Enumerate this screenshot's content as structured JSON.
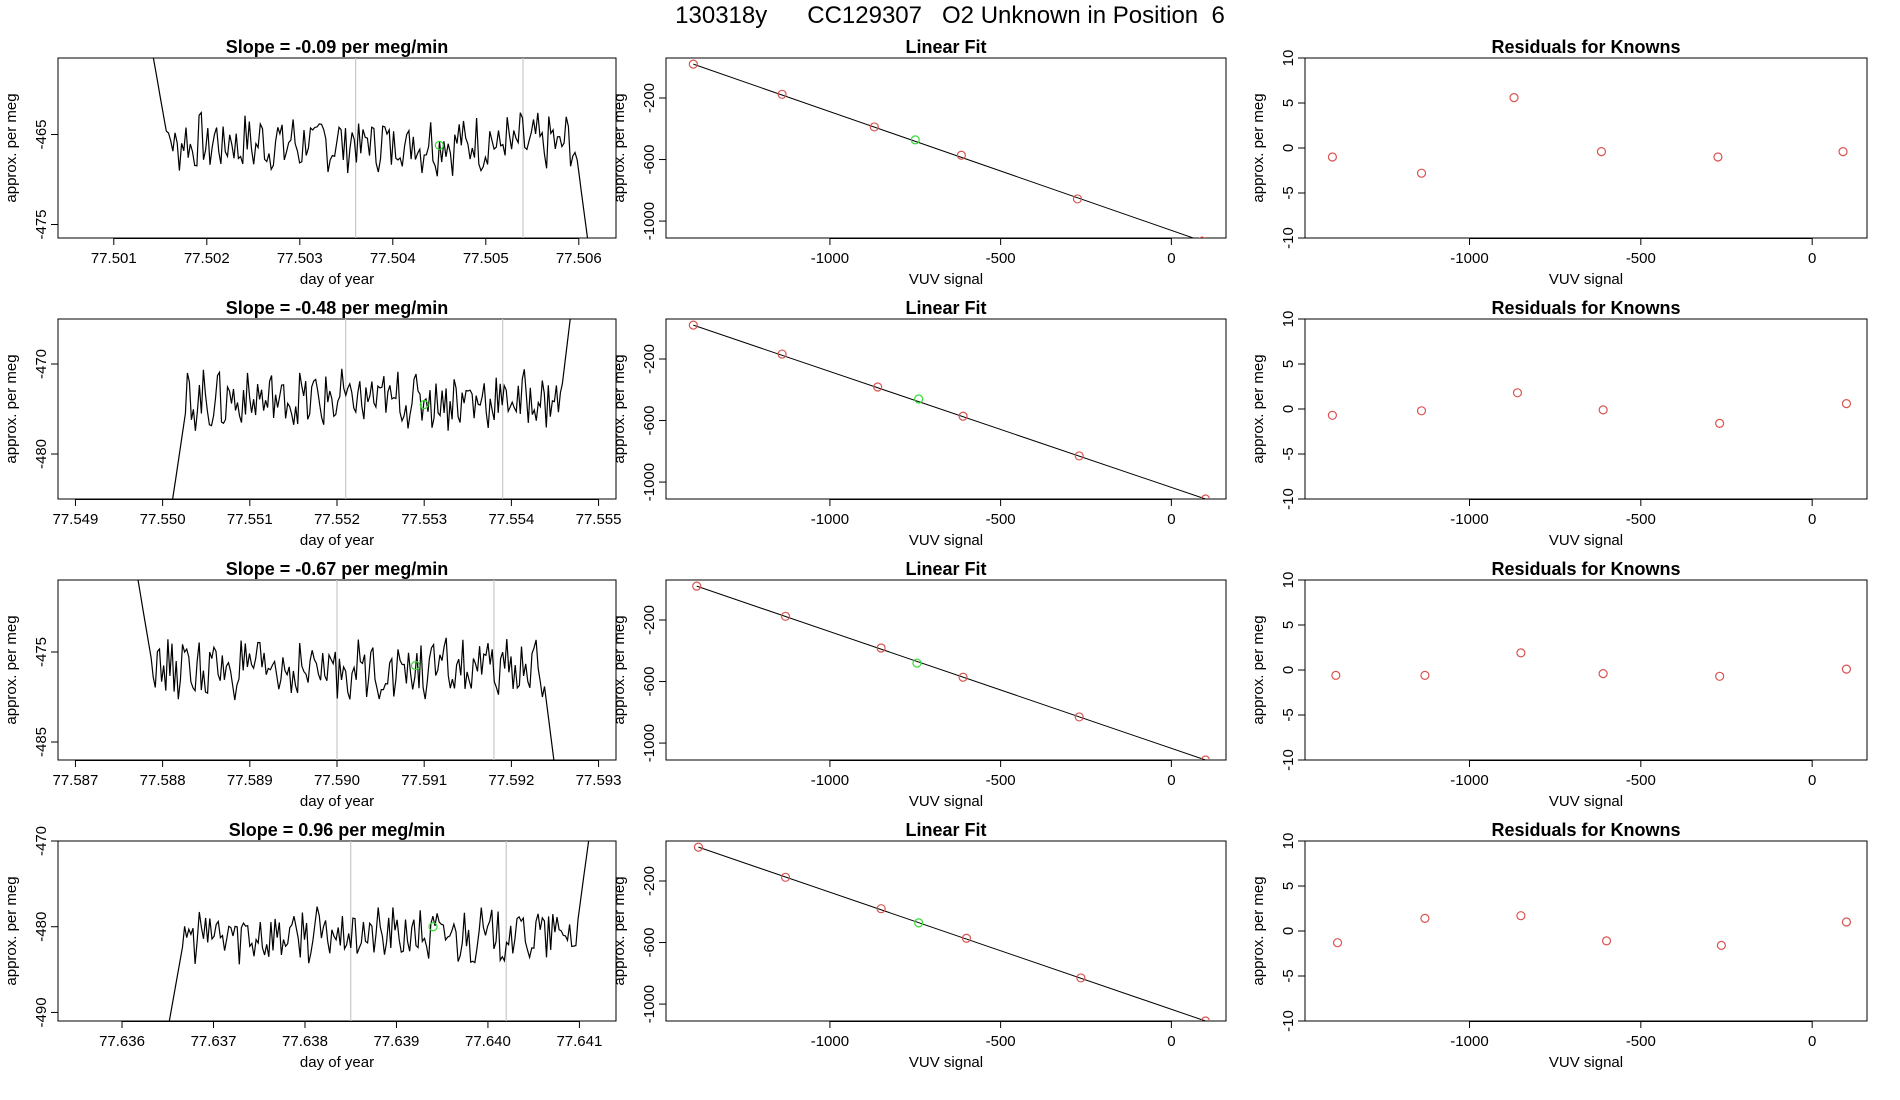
{
  "figure": {
    "title": "130318y      CC129307   O2 Unknown in Position  6"
  },
  "colors": {
    "trace": "#000000",
    "known_points": "#d9534f",
    "unknown_point": "#33dd33",
    "marker_lines": "#c8c8c8"
  },
  "chart_data": [
    {
      "type": "line",
      "row": 1,
      "title": "Slope =  -0.09  per meg/min",
      "xlabel": "day of year",
      "ylabel": "approx. per meg",
      "xlim": [
        77.5004,
        77.5064
      ],
      "ylim": [
        -476.5,
        -456.5
      ],
      "xticks": [
        77.501,
        77.502,
        77.503,
        77.504,
        77.505,
        77.506
      ],
      "yticks": [
        -465,
        -475
      ],
      "start": 77.5014,
      "end": 77.5061,
      "level": -466,
      "amplitude": 2.8,
      "head": -455,
      "tail": -477,
      "vlines": [
        77.5036,
        77.5054
      ],
      "marker": {
        "x": 77.5045,
        "y": -466.2
      }
    },
    {
      "type": "scatter",
      "row": 1,
      "title": "Linear Fit",
      "xlabel": "VUV signal",
      "ylabel": "approx. per meg",
      "xlim": [
        -1480,
        160
      ],
      "ylim": [
        -1110,
        60
      ],
      "xticks": [
        -1000,
        -500,
        0
      ],
      "yticks": [
        -200,
        -600,
        -1000
      ],
      "knowns_x": [
        -1400,
        -1140,
        -870,
        -615,
        -275,
        90
      ],
      "knowns_y": [
        20,
        -176,
        -388,
        -572,
        -856,
        -1130
      ],
      "unknown": {
        "x": -750,
        "y": -472
      },
      "fit_line": [
        [
          -1400,
          20
        ],
        [
          90,
          -1130
        ]
      ]
    },
    {
      "type": "scatter",
      "row": 1,
      "title": "Residuals for Knowns",
      "xlabel": "VUV signal",
      "ylabel": "approx. per meg",
      "xlim": [
        -1480,
        160
      ],
      "ylim": [
        -10,
        10
      ],
      "xticks": [
        -1000,
        -500,
        0
      ],
      "yticks": [
        10,
        5,
        0,
        -5,
        -10
      ],
      "x": [
        -1400,
        -1140,
        -870,
        -615,
        -275,
        90
      ],
      "y": [
        -1,
        -2.8,
        5.6,
        -0.4,
        -1,
        -0.4
      ]
    },
    {
      "type": "line",
      "row": 2,
      "title": "Slope =  -0.48  per meg/min",
      "xlabel": "day of year",
      "ylabel": "approx. per meg",
      "xlim": [
        77.5488,
        77.5552
      ],
      "ylim": [
        -485,
        -465
      ],
      "xticks": [
        77.549,
        77.55,
        77.551,
        77.552,
        77.553,
        77.554,
        77.555
      ],
      "yticks": [
        -470,
        -480
      ],
      "start": 77.5501,
      "end": 77.5547,
      "level": -474,
      "amplitude": 2.8,
      "head": -486,
      "tail": -463,
      "vlines": [
        77.5521,
        77.5539
      ],
      "marker": {
        "x": 77.553,
        "y": -474.5
      }
    },
    {
      "type": "scatter",
      "row": 2,
      "title": "Linear Fit",
      "xlabel": "VUV signal",
      "ylabel": "approx. per meg",
      "xlim": [
        -1480,
        160
      ],
      "ylim": [
        -1110,
        60
      ],
      "xticks": [
        -1000,
        -500,
        0
      ],
      "yticks": [
        -200,
        -600,
        -1000
      ],
      "knowns_x": [
        -1400,
        -1140,
        -860,
        -610,
        -270,
        100
      ],
      "knowns_y": [
        20,
        -168,
        -382,
        -572,
        -830,
        -1110
      ],
      "unknown": {
        "x": -740,
        "y": -460
      },
      "fit_line": [
        [
          -1400,
          20
        ],
        [
          100,
          -1110
        ]
      ]
    },
    {
      "type": "scatter",
      "row": 2,
      "title": "Residuals for Knowns",
      "xlabel": "VUV signal",
      "ylabel": "approx. per meg",
      "xlim": [
        -1480,
        160
      ],
      "ylim": [
        -10,
        10
      ],
      "xticks": [
        -1000,
        -500,
        0
      ],
      "yticks": [
        10,
        5,
        0,
        -5,
        -10
      ],
      "x": [
        -1400,
        -1140,
        -860,
        -610,
        -270,
        100
      ],
      "y": [
        -0.7,
        -0.2,
        1.8,
        -0.1,
        -1.6,
        0.6
      ]
    },
    {
      "type": "line",
      "row": 3,
      "title": "Slope =  -0.67  per meg/min",
      "xlabel": "day of year",
      "ylabel": "approx. per meg",
      "xlim": [
        77.5868,
        77.5932
      ],
      "ylim": [
        -487,
        -467
      ],
      "xticks": [
        77.587,
        77.588,
        77.589,
        77.59,
        77.591,
        77.592,
        77.593
      ],
      "yticks": [
        -475,
        -485
      ],
      "start": 77.5877,
      "end": 77.5925,
      "level": -477,
      "amplitude": 2.8,
      "head": -466,
      "tail": -488,
      "vlines": [
        77.59,
        77.5918
      ],
      "marker": {
        "x": 77.5909,
        "y": -476.5
      }
    },
    {
      "type": "scatter",
      "row": 3,
      "title": "Linear Fit",
      "xlabel": "VUV signal",
      "ylabel": "approx. per meg",
      "xlim": [
        -1480,
        160
      ],
      "ylim": [
        -1110,
        60
      ],
      "xticks": [
        -1000,
        -500,
        0
      ],
      "yticks": [
        -200,
        -600,
        -1000
      ],
      "knowns_x": [
        -1390,
        -1130,
        -850,
        -610,
        -270,
        100
      ],
      "knowns_y": [
        20,
        -176,
        -382,
        -572,
        -830,
        -1110
      ],
      "unknown": {
        "x": -745,
        "y": -480
      },
      "fit_line": [
        [
          -1390,
          20
        ],
        [
          100,
          -1110
        ]
      ]
    },
    {
      "type": "scatter",
      "row": 3,
      "title": "Residuals for Knowns",
      "xlabel": "VUV signal",
      "ylabel": "approx. per meg",
      "xlim": [
        -1480,
        160
      ],
      "ylim": [
        -10,
        10
      ],
      "xticks": [
        -1000,
        -500,
        0
      ],
      "yticks": [
        10,
        5,
        0,
        -5,
        -10
      ],
      "x": [
        -1390,
        -1130,
        -850,
        -610,
        -270,
        100
      ],
      "y": [
        -0.6,
        -0.6,
        1.9,
        -0.4,
        -0.7,
        0.1
      ]
    },
    {
      "type": "line",
      "row": 4,
      "title": "Slope =  0.96  per meg/min",
      "xlabel": "day of year",
      "ylabel": "approx. per meg",
      "xlim": [
        77.6353,
        77.6414
      ],
      "ylim": [
        -491,
        -470
      ],
      "xticks": [
        77.636,
        77.637,
        77.638,
        77.639,
        77.64,
        77.641
      ],
      "yticks": [
        -470,
        -480,
        -490
      ],
      "start": 77.6365,
      "end": 77.6411,
      "level": -481,
      "amplitude": 2.8,
      "head": -492,
      "tail": -470,
      "vlines": [
        77.6385,
        77.6402
      ],
      "marker": {
        "x": 77.6394,
        "y": -480
      }
    },
    {
      "type": "scatter",
      "row": 4,
      "title": "Linear Fit",
      "xlabel": "VUV signal",
      "ylabel": "approx. per meg",
      "xlim": [
        -1480,
        160
      ],
      "ylim": [
        -1110,
        60
      ],
      "xticks": [
        -1000,
        -500,
        0
      ],
      "yticks": [
        -200,
        -600,
        -1000
      ],
      "knowns_x": [
        -1385,
        -1130,
        -850,
        -600,
        -265,
        100
      ],
      "knowns_y": [
        20,
        -176,
        -380,
        -572,
        -830,
        -1110
      ],
      "unknown": {
        "x": -740,
        "y": -472
      },
      "fit_line": [
        [
          -1385,
          20
        ],
        [
          100,
          -1110
        ]
      ]
    },
    {
      "type": "scatter",
      "row": 4,
      "title": "Residuals for Knowns",
      "xlabel": "VUV signal",
      "ylabel": "approx. per meg",
      "xlim": [
        -1480,
        160
      ],
      "ylim": [
        -10,
        10
      ],
      "xticks": [
        -1000,
        -500,
        0
      ],
      "yticks": [
        10,
        5,
        0,
        -5,
        -10
      ],
      "x": [
        -1385,
        -1130,
        -850,
        -600,
        -265,
        100
      ],
      "y": [
        -1.3,
        1.4,
        1.7,
        -1.1,
        -1.6,
        1
      ]
    }
  ]
}
